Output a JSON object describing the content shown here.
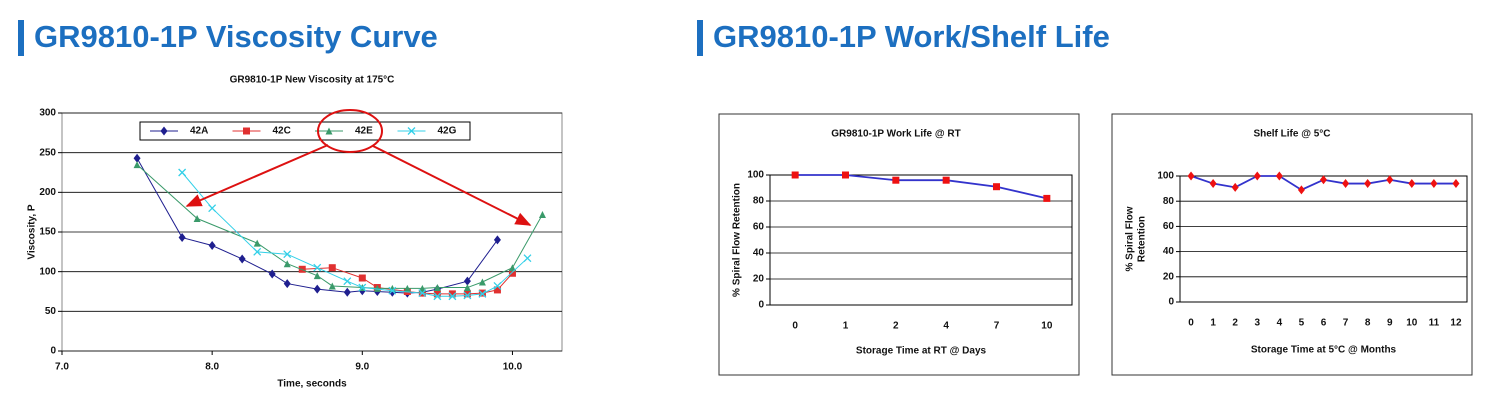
{
  "headings": [
    "GR9810-1P Viscosity Curve",
    "GR9810-1P Work/Shelf Life"
  ],
  "chart_data": [
    {
      "type": "line",
      "title": "GR9810-1P New Viscosity at 175°C",
      "xlabel": "Time, seconds",
      "ylabel": "Viscosity, P",
      "xlim": [
        7,
        10.33
      ],
      "xticks": [
        {
          "value": 7,
          "label": "7.0"
        },
        {
          "value": 8,
          "label": "8.0"
        },
        {
          "value": 9,
          "label": "9.0"
        },
        {
          "value": 10,
          "label": "10.0"
        }
      ],
      "ylim": [
        0,
        300
      ],
      "yticks": [
        0,
        50,
        100,
        150,
        200,
        250,
        300
      ],
      "grid": true,
      "legend": "top",
      "series": [
        {
          "name": "42A",
          "color": "#1f1f8f",
          "marker": "diamond",
          "x": [
            7.5,
            7.8,
            8.0,
            8.2,
            8.4,
            8.5,
            8.7,
            8.9,
            9.0,
            9.1,
            9.2,
            9.3,
            9.4,
            9.5,
            9.7,
            9.9
          ],
          "values": [
            243,
            143,
            133,
            116,
            97,
            85,
            78,
            74,
            76,
            75,
            74,
            73,
            74,
            78,
            88,
            140
          ]
        },
        {
          "name": "42C",
          "color": "#e03030",
          "marker": "square",
          "x": [
            8.6,
            8.8,
            9.0,
            9.1,
            9.3,
            9.4,
            9.5,
            9.6,
            9.7,
            9.8,
            9.9,
            10.0
          ],
          "values": [
            103,
            105,
            92,
            80,
            75,
            73,
            72,
            72,
            72,
            73,
            77,
            98
          ]
        },
        {
          "name": "42E",
          "color": "#3a9a6a",
          "marker": "triangle",
          "x": [
            7.5,
            7.9,
            8.3,
            8.5,
            8.7,
            8.8,
            9.0,
            9.1,
            9.2,
            9.3,
            9.4,
            9.5,
            9.7,
            9.8,
            10.0,
            10.2
          ],
          "values": [
            235,
            167,
            136,
            110,
            95,
            82,
            80,
            79,
            79,
            79,
            79,
            80,
            80,
            87,
            105,
            172
          ]
        },
        {
          "name": "42G",
          "color": "#33d0e8",
          "marker": "x",
          "x": [
            7.8,
            8.0,
            8.3,
            8.5,
            8.7,
            8.9,
            9.0,
            9.2,
            9.4,
            9.5,
            9.6,
            9.7,
            9.8,
            9.9,
            10.1
          ],
          "values": [
            225,
            180,
            125,
            122,
            105,
            88,
            80,
            76,
            73,
            69,
            69,
            70,
            72,
            82,
            117
          ]
        }
      ]
    },
    {
      "type": "line",
      "title": "GR9810-1P Work Life @ RT",
      "xlabel": "Storage Time at RT @ Days",
      "ylabel": "% Spiral Flow Retention",
      "categories": [
        "0",
        "1",
        "2",
        "4",
        "7",
        "10"
      ],
      "values": [
        100,
        100,
        96,
        96,
        91,
        82
      ],
      "color": "#3333cc",
      "marker": "square",
      "marker_color": "#ee1111",
      "ylim": [
        0,
        100
      ],
      "yticks": [
        0,
        20,
        40,
        60,
        80,
        100
      ],
      "grid": true
    },
    {
      "type": "line",
      "title": "Shelf Life @ 5°C",
      "xlabel": "Storage Time at 5°C @ Months",
      "ylabel": [
        "% Spiral Flow",
        "Retention"
      ],
      "categories": [
        "0",
        "1",
        "2",
        "3",
        "4",
        "5",
        "6",
        "7",
        "8",
        "9",
        "10",
        "11",
        "12"
      ],
      "values": [
        100,
        94,
        91,
        100,
        100,
        89,
        97,
        94,
        94,
        97,
        94,
        94,
        94
      ],
      "color": "#3333cc",
      "marker": "diamond",
      "marker_color": "#ee1111",
      "ylim": [
        0,
        100
      ],
      "yticks": [
        0,
        20,
        40,
        60,
        80,
        100
      ],
      "grid": true
    }
  ]
}
